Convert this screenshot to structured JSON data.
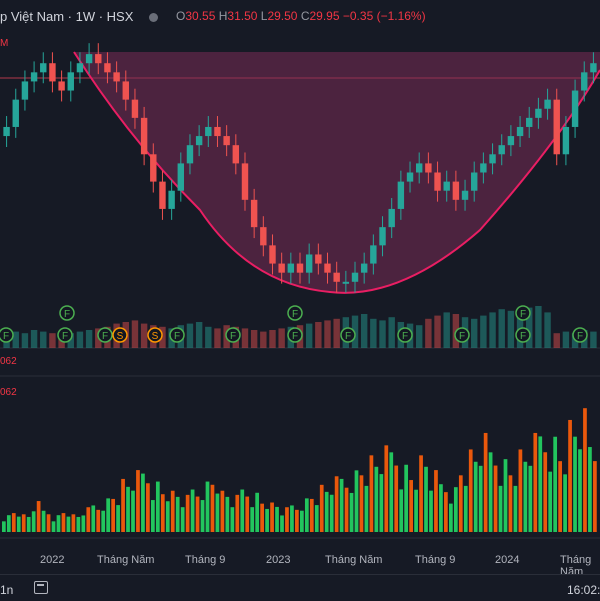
{
  "header": {
    "symbol_title": "p Việt Nam · 1W · HSX",
    "ohlc": {
      "o_label": "O",
      "o_value": "30.55",
      "h_label": "H",
      "h_value": "31.50",
      "l_label": "L",
      "l_value": "29.50",
      "c_label": "C",
      "c_value": "29.95",
      "change": "−0.35 (−1.16%)"
    },
    "price_indicator": "M",
    "vol_label_1": "062",
    "vol_label_2": "062"
  },
  "x_axis": {
    "labels": [
      "2022",
      "Tháng Năm",
      "Tháng 9",
      "2023",
      "Tháng Năm",
      "Tháng 9",
      "2024",
      "Tháng Năm"
    ]
  },
  "bottom_bar": {
    "timeframe": "1n",
    "clock": "16:02:"
  },
  "colors": {
    "background": "#161a25",
    "up": "#26a69a",
    "down": "#ef5350",
    "cup_fill": "#7a2c55",
    "cup_line": "#e91e63",
    "vol_up": "#22c55e",
    "vol_down": "#ea580c",
    "event_marker_green": "#4caf50",
    "event_marker_orange": "#ff9800"
  },
  "event_markers": [
    {
      "label": "F",
      "color": "green"
    },
    {
      "label": "F",
      "color": "green"
    },
    {
      "label": "F",
      "color": "green"
    },
    {
      "label": "S",
      "color": "orange"
    },
    {
      "label": "F",
      "color": "green"
    },
    {
      "label": "S",
      "color": "orange"
    },
    {
      "label": "F",
      "color": "green"
    },
    {
      "label": "F",
      "color": "green"
    },
    {
      "label": "F",
      "color": "green"
    },
    {
      "label": "F",
      "color": "green"
    },
    {
      "label": "F",
      "color": "green"
    },
    {
      "label": "F",
      "color": "green"
    },
    {
      "label": "F",
      "color": "green"
    },
    {
      "label": "F",
      "color": "green"
    },
    {
      "label": "F",
      "color": "green"
    },
    {
      "label": "F",
      "color": "green"
    },
    {
      "label": "F",
      "color": "green"
    }
  ],
  "price_series": [
    33,
    36,
    38,
    39,
    40,
    38,
    37,
    39,
    40,
    41,
    40,
    39,
    38,
    36,
    34,
    30,
    27,
    24,
    26,
    29,
    31,
    32,
    33,
    32,
    31,
    29,
    25,
    22,
    20,
    18,
    17,
    18,
    17,
    19,
    18,
    17,
    16,
    16,
    17,
    18,
    20,
    22,
    24,
    27,
    28,
    29,
    28,
    26,
    27,
    25,
    26,
    28,
    29,
    30,
    31,
    32,
    33,
    34,
    35,
    36,
    30,
    33,
    37,
    39,
    40
  ],
  "volume_series": [
    3,
    4,
    3,
    5,
    4,
    3,
    4,
    3,
    4,
    5,
    6,
    7,
    9,
    10,
    11,
    9,
    8,
    7,
    6,
    8,
    9,
    10,
    7,
    6,
    8,
    7,
    6,
    5,
    4,
    5,
    6,
    7,
    8,
    9,
    10,
    11,
    12,
    13,
    14,
    15,
    12,
    11,
    13,
    10,
    9,
    8,
    12,
    14,
    16,
    15,
    13,
    12,
    14,
    16,
    18,
    17,
    15,
    19,
    20,
    16
  ]
}
